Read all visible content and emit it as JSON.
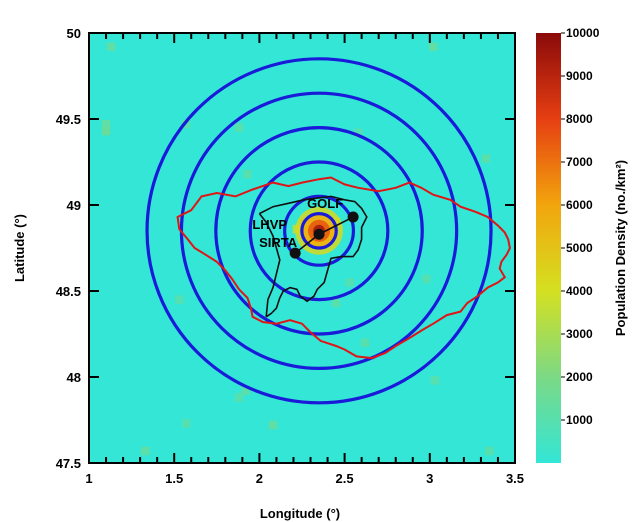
{
  "chart_data": {
    "type": "heatmap",
    "title": "",
    "xlabel": "Longitude (°)",
    "ylabel": "Latitude (°)",
    "xlim": [
      1,
      3.5
    ],
    "ylim": [
      47.5,
      50
    ],
    "xticks": [
      1,
      1.5,
      2,
      2.5,
      3,
      3.5
    ],
    "yticks": [
      47.5,
      48,
      48.5,
      49,
      49.5,
      50
    ],
    "xtick_labels": [
      "1",
      "1.5",
      "2",
      "2.5",
      "3",
      "3.5"
    ],
    "ytick_labels": [
      "47.5",
      "48",
      "48.5",
      "49",
      "49.5",
      "50"
    ],
    "colorbar": {
      "label": "Population Density (no./km²)",
      "range": [
        0,
        10000
      ],
      "ticks": [
        1000,
        2000,
        3000,
        4000,
        5000,
        6000,
        7000,
        8000,
        9000,
        10000
      ],
      "tick_labels": [
        "1000",
        "2000",
        "3000",
        "4000",
        "5000",
        "6000",
        "7000",
        "8000",
        "9000",
        "10000"
      ],
      "colors": [
        "#33e6d6",
        "#7cd985",
        "#d4e021",
        "#f2a50d",
        "#e63f12",
        "#8a0a0a"
      ]
    },
    "background_density": 300,
    "hotspots": [
      {
        "lon": 2.35,
        "lat": 48.85,
        "density": 9800
      },
      {
        "lon": 2.28,
        "lat": 48.88,
        "density": 6500
      },
      {
        "lon": 2.42,
        "lat": 48.84,
        "density": 6200
      },
      {
        "lon": 2.3,
        "lat": 48.8,
        "density": 5500
      },
      {
        "lon": 2.45,
        "lat": 48.9,
        "density": 4000
      },
      {
        "lon": 2.22,
        "lat": 48.86,
        "density": 3800
      },
      {
        "lon": 1.1,
        "lat": 49.43,
        "density": 1800
      },
      {
        "lon": 1.1,
        "lat": 49.47,
        "density": 1500
      },
      {
        "lon": 1.13,
        "lat": 49.92,
        "density": 1500
      },
      {
        "lon": 3.02,
        "lat": 49.92,
        "density": 1500
      },
      {
        "lon": 1.57,
        "lat": 49.47,
        "density": 1200
      },
      {
        "lon": 1.88,
        "lat": 49.45,
        "density": 1200
      },
      {
        "lon": 1.93,
        "lat": 49.18,
        "density": 1200
      },
      {
        "lon": 2.58,
        "lat": 49.42,
        "density": 1100
      },
      {
        "lon": 3.33,
        "lat": 49.27,
        "density": 1300
      },
      {
        "lon": 2.98,
        "lat": 48.57,
        "density": 1100
      },
      {
        "lon": 2.53,
        "lat": 48.55,
        "density": 1100
      },
      {
        "lon": 2.45,
        "lat": 48.43,
        "density": 1300
      },
      {
        "lon": 1.53,
        "lat": 48.45,
        "density": 1100
      },
      {
        "lon": 2.62,
        "lat": 48.2,
        "density": 1200
      },
      {
        "lon": 3.03,
        "lat": 47.98,
        "density": 1200
      },
      {
        "lon": 3.35,
        "lat": 47.57,
        "density": 1200
      },
      {
        "lon": 1.88,
        "lat": 47.88,
        "density": 1200
      },
      {
        "lon": 1.92,
        "lat": 47.92,
        "density": 1300
      },
      {
        "lon": 2.08,
        "lat": 47.72,
        "density": 1500
      },
      {
        "lon": 1.33,
        "lat": 47.57,
        "density": 1400
      },
      {
        "lon": 1.57,
        "lat": 47.73,
        "density": 1100
      }
    ],
    "circles": {
      "center": {
        "lon": 2.35,
        "lat": 48.85
      },
      "radii_deg_lat": [
        0.1,
        0.2,
        0.4,
        0.6,
        0.8,
        1.0
      ],
      "color": "#1a1ad9"
    },
    "sites": [
      {
        "name": "GOLF",
        "lon": 2.55,
        "lat": 48.93
      },
      {
        "name": "LHVP",
        "lon": 2.35,
        "lat": 48.83
      },
      {
        "name": "SIRTA",
        "lon": 2.21,
        "lat": 48.72
      }
    ],
    "region_outline_red": [
      [
        1.52,
        48.93
      ],
      [
        1.6,
        48.97
      ],
      [
        1.66,
        49.05
      ],
      [
        1.75,
        49.07
      ],
      [
        1.86,
        49.05
      ],
      [
        1.96,
        49.09
      ],
      [
        2.08,
        49.13
      ],
      [
        2.17,
        49.11
      ],
      [
        2.25,
        49.13
      ],
      [
        2.35,
        49.15
      ],
      [
        2.42,
        49.16
      ],
      [
        2.5,
        49.12
      ],
      [
        2.58,
        49.1
      ],
      [
        2.7,
        49.08
      ],
      [
        2.8,
        49.1
      ],
      [
        2.88,
        49.13
      ],
      [
        2.95,
        49.1
      ],
      [
        3.02,
        49.06
      ],
      [
        3.12,
        49.03
      ],
      [
        3.18,
        48.99
      ],
      [
        3.27,
        48.96
      ],
      [
        3.34,
        48.93
      ],
      [
        3.4,
        48.88
      ],
      [
        3.44,
        48.84
      ],
      [
        3.46,
        48.8
      ],
      [
        3.47,
        48.75
      ],
      [
        3.45,
        48.71
      ],
      [
        3.42,
        48.67
      ],
      [
        3.41,
        48.63
      ],
      [
        3.44,
        48.58
      ],
      [
        3.4,
        48.55
      ],
      [
        3.34,
        48.52
      ],
      [
        3.28,
        48.47
      ],
      [
        3.22,
        48.43
      ],
      [
        3.18,
        48.38
      ],
      [
        3.1,
        48.36
      ],
      [
        3.02,
        48.31
      ],
      [
        2.95,
        48.27
      ],
      [
        2.87,
        48.22
      ],
      [
        2.8,
        48.18
      ],
      [
        2.74,
        48.14
      ],
      [
        2.66,
        48.11
      ],
      [
        2.57,
        48.12
      ],
      [
        2.5,
        48.16
      ],
      [
        2.45,
        48.18
      ],
      [
        2.36,
        48.21
      ],
      [
        2.3,
        48.26
      ],
      [
        2.25,
        48.31
      ],
      [
        2.18,
        48.33
      ],
      [
        2.1,
        48.31
      ],
      [
        2.02,
        48.32
      ],
      [
        1.96,
        48.35
      ],
      [
        1.95,
        48.4
      ],
      [
        1.93,
        48.46
      ],
      [
        1.88,
        48.51
      ],
      [
        1.84,
        48.57
      ],
      [
        1.8,
        48.62
      ],
      [
        1.75,
        48.67
      ],
      [
        1.67,
        48.72
      ],
      [
        1.62,
        48.75
      ],
      [
        1.58,
        48.8
      ],
      [
        1.53,
        48.86
      ],
      [
        1.52,
        48.93
      ]
    ],
    "region_outline_black": [
      [
        2.0,
        48.95
      ],
      [
        2.08,
        48.99
      ],
      [
        2.17,
        49.01
      ],
      [
        2.26,
        49.03
      ],
      [
        2.34,
        49.04
      ],
      [
        2.42,
        49.05
      ],
      [
        2.5,
        49.03
      ],
      [
        2.56,
        49.02
      ],
      [
        2.6,
        48.98
      ],
      [
        2.63,
        48.93
      ],
      [
        2.6,
        48.87
      ],
      [
        2.6,
        48.8
      ],
      [
        2.58,
        48.74
      ],
      [
        2.55,
        48.7
      ],
      [
        2.48,
        48.7
      ],
      [
        2.42,
        48.69
      ],
      [
        2.4,
        48.62
      ],
      [
        2.38,
        48.55
      ],
      [
        2.34,
        48.51
      ],
      [
        2.32,
        48.47
      ],
      [
        2.28,
        48.44
      ],
      [
        2.24,
        48.47
      ],
      [
        2.22,
        48.51
      ],
      [
        2.18,
        48.52
      ],
      [
        2.14,
        48.5
      ],
      [
        2.12,
        48.46
      ],
      [
        2.1,
        48.4
      ],
      [
        2.07,
        48.37
      ],
      [
        2.04,
        48.35
      ]
    ],
    "region_outline_black_north": [
      [
        2.0,
        48.95
      ],
      [
        2.04,
        48.9
      ],
      [
        2.08,
        48.82
      ],
      [
        2.1,
        48.75
      ],
      [
        2.12,
        48.68
      ],
      [
        2.1,
        48.6
      ],
      [
        2.08,
        48.52
      ],
      [
        2.05,
        48.45
      ],
      [
        2.04,
        48.35
      ]
    ],
    "grid": false,
    "legend": "none"
  }
}
